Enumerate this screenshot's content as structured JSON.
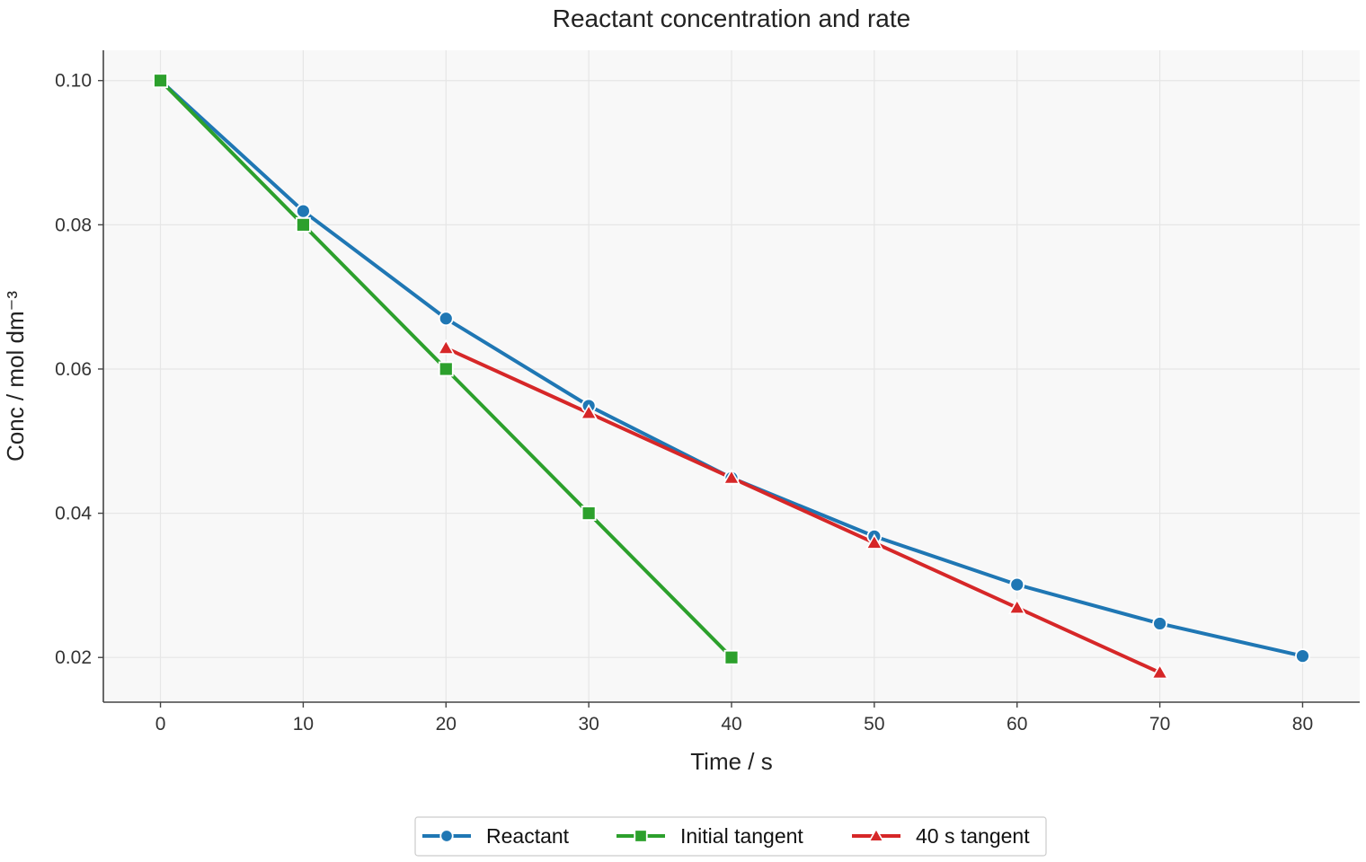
{
  "chart_data": {
    "type": "line",
    "title": "Reactant concentration and rate",
    "xlabel": "Time / s",
    "ylabel": "Conc / mol dm⁻³",
    "xlim": [
      -4,
      84
    ],
    "ylim": [
      0.0138,
      0.1042
    ],
    "xticks": [
      0,
      10,
      20,
      30,
      40,
      50,
      60,
      70,
      80
    ],
    "yticks": [
      0.02,
      0.04,
      0.06,
      0.08,
      0.1
    ],
    "ytick_labels": [
      "0.02",
      "0.04",
      "0.06",
      "0.08",
      "0.10"
    ],
    "grid": true,
    "legend_position": "bottom-center",
    "series": [
      {
        "name": "Reactant",
        "color": "#1f77b4",
        "marker": "circle",
        "x": [
          0,
          10,
          20,
          30,
          40,
          50,
          60,
          70,
          80
        ],
        "y": [
          0.1,
          0.0819,
          0.067,
          0.0549,
          0.0449,
          0.0368,
          0.0301,
          0.0247,
          0.0202
        ]
      },
      {
        "name": "Initial tangent",
        "color": "#2ca02c",
        "marker": "square",
        "x": [
          0,
          10,
          20,
          30,
          40
        ],
        "y": [
          0.1,
          0.08,
          0.06,
          0.04,
          0.02
        ]
      },
      {
        "name": "40 s tangent",
        "color": "#d62728",
        "marker": "triangle",
        "x": [
          20,
          30,
          40,
          50,
          60,
          70
        ],
        "y": [
          0.0629,
          0.0539,
          0.0449,
          0.0359,
          0.0269,
          0.0179
        ]
      }
    ]
  }
}
